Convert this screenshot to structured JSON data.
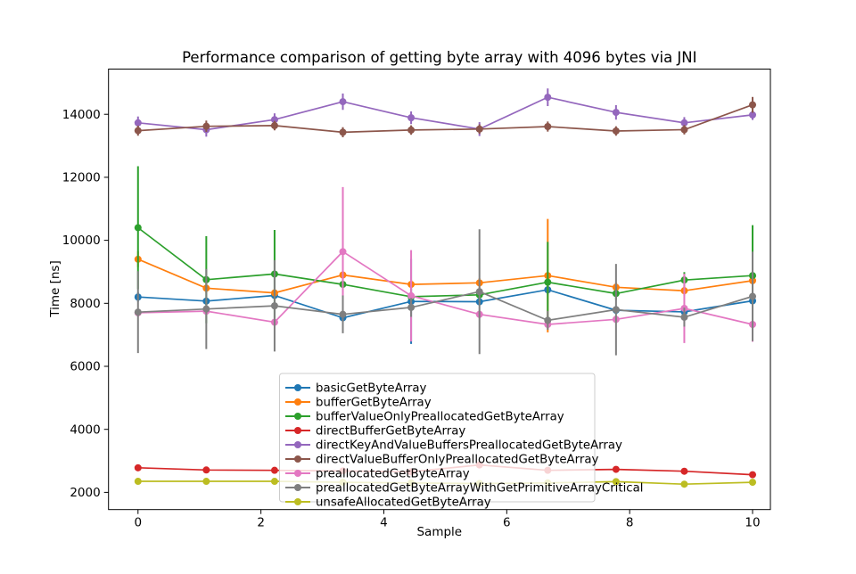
{
  "figure": {
    "title": "Performance comparison of getting byte array with 4096 bytes via JNI",
    "xlabel": "Sample",
    "ylabel": "Time [ns]"
  },
  "chart_data": {
    "type": "line",
    "title": "Performance comparison of getting byte array with 4096 bytes via JNI",
    "xlabel": "Sample",
    "ylabel": "Time [ns]",
    "grid": false,
    "legend_position": "inside-lower-center",
    "x": [
      0,
      1.111,
      2.222,
      3.333,
      4.444,
      5.556,
      6.667,
      7.778,
      8.889,
      10
    ],
    "xticks": [
      0,
      2,
      4,
      6,
      8,
      10
    ],
    "yticks": [
      2000,
      4000,
      6000,
      8000,
      10000,
      12000,
      14000
    ],
    "xlim": [
      -0.48,
      10.29
    ],
    "ylim": [
      1454,
      15435
    ],
    "series": [
      {
        "name": "basicGetByteArray",
        "color": "#1f77b4",
        "values": [
          8200,
          8070,
          8250,
          7540,
          8060,
          8050,
          8430,
          7780,
          7730,
          8080
        ],
        "errors": [
          150,
          120,
          100,
          120,
          1350,
          120,
          150,
          120,
          150,
          500
        ]
      },
      {
        "name": "bufferGetByteArray",
        "color": "#ff7f0e",
        "values": [
          9400,
          8480,
          8330,
          8900,
          8600,
          8650,
          8880,
          8510,
          8400,
          8720
        ],
        "errors": [
          250,
          150,
          120,
          150,
          150,
          150,
          1800,
          150,
          150,
          150
        ]
      },
      {
        "name": "bufferValueOnlyPreallocatedGetByteArray",
        "color": "#2ca02c",
        "values": [
          10400,
          8750,
          8930,
          8600,
          8210,
          8270,
          8670,
          8310,
          8740,
          8880
        ],
        "errors": [
          1950,
          1380,
          1400,
          300,
          250,
          200,
          1280,
          200,
          250,
          1600
        ]
      },
      {
        "name": "directBufferGetByteArray",
        "color": "#d62728",
        "values": [
          2780,
          2710,
          2700,
          2680,
          2650,
          2870,
          2700,
          2730,
          2670,
          2560
        ],
        "errors": [
          40,
          30,
          30,
          30,
          30,
          40,
          30,
          30,
          30,
          40
        ]
      },
      {
        "name": "directKeyAndValueBuffersPreallocatedGetByteArray",
        "color": "#9467bd",
        "values": [
          13730,
          13510,
          13830,
          14400,
          13890,
          13530,
          14540,
          14060,
          13730,
          13980
        ],
        "errors": [
          200,
          220,
          200,
          260,
          200,
          220,
          280,
          230,
          180,
          160
        ]
      },
      {
        "name": "directValueBufferOnlyPreallocatedGetByteArray",
        "color": "#8c564b",
        "values": [
          13480,
          13620,
          13640,
          13430,
          13500,
          13530,
          13610,
          13470,
          13510,
          14300
        ],
        "errors": [
          160,
          180,
          150,
          160,
          150,
          150,
          160,
          150,
          150,
          250
        ]
      },
      {
        "name": "preallocatedGetByteArray",
        "color": "#e377c2",
        "values": [
          7700,
          7750,
          7400,
          9640,
          8240,
          7650,
          7330,
          7490,
          7840,
          7330
        ],
        "errors": [
          120,
          100,
          100,
          2050,
          1450,
          120,
          150,
          120,
          1100,
          550
        ]
      },
      {
        "name": "preallocatedGetByteArrayWithGetPrimitiveArrayCritical",
        "color": "#7f7f7f",
        "values": [
          7720,
          7820,
          7920,
          7650,
          7870,
          8370,
          7460,
          7800,
          7560,
          8220
        ],
        "errors": [
          1300,
          1270,
          1450,
          600,
          300,
          1980,
          300,
          1450,
          300,
          1420
        ]
      },
      {
        "name": "unsafeAllocatedGetByteArray",
        "color": "#bcbd22",
        "values": [
          2350,
          2350,
          2350,
          2320,
          2300,
          2280,
          2300,
          2340,
          2260,
          2320
        ],
        "errors": [
          40,
          30,
          60,
          30,
          30,
          30,
          30,
          50,
          30,
          60
        ]
      }
    ]
  }
}
